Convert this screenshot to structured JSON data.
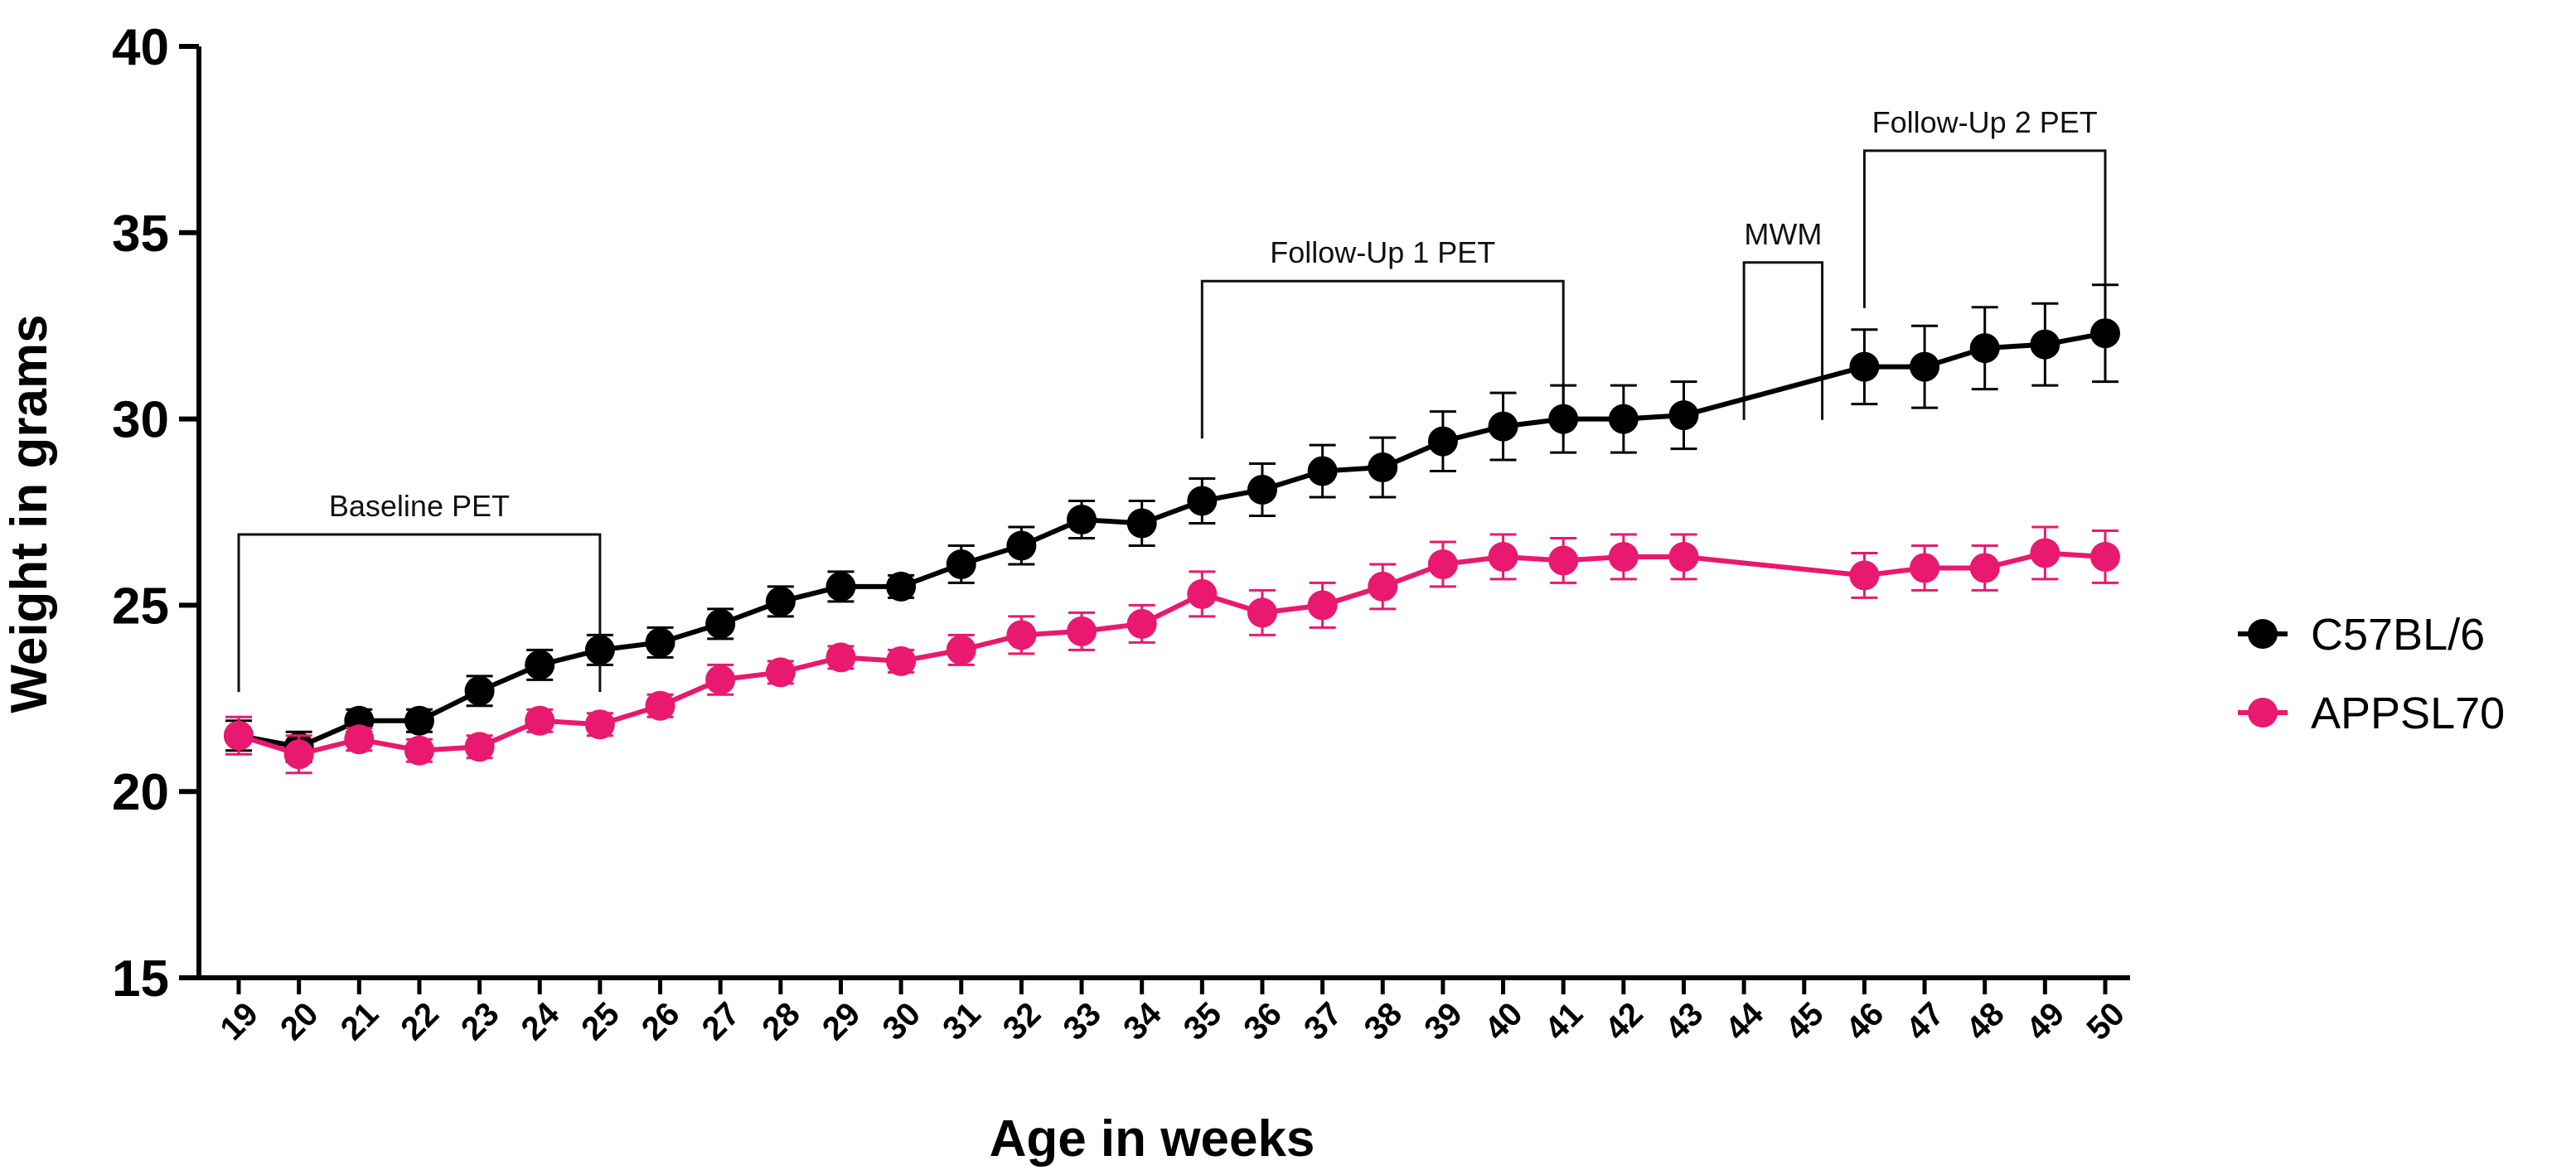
{
  "chart_data": {
    "type": "line",
    "title": "",
    "xlabel": "Age in weeks",
    "ylabel": "Weight in grams",
    "x": [
      19,
      20,
      21,
      22,
      23,
      24,
      25,
      26,
      27,
      28,
      29,
      30,
      31,
      32,
      33,
      34,
      35,
      36,
      37,
      38,
      39,
      40,
      41,
      42,
      43,
      44,
      45,
      46,
      47,
      48,
      49,
      50
    ],
    "x_ticks": [
      "19",
      "20",
      "21",
      "22",
      "23",
      "24",
      "25",
      "26",
      "27",
      "28",
      "29",
      "30",
      "31",
      "32",
      "33",
      "34",
      "35",
      "36",
      "37",
      "38",
      "39",
      "40",
      "41",
      "42",
      "43",
      "44",
      "45",
      "46",
      "47",
      "48",
      "49",
      "50"
    ],
    "ylim": [
      15,
      40
    ],
    "y_ticks": [
      "15",
      "20",
      "25",
      "30",
      "35",
      "40"
    ],
    "grid": false,
    "legend_position": "right",
    "series": [
      {
        "name": "C57BL/6",
        "color": "#000000",
        "x": [
          19,
          20,
          21,
          22,
          23,
          24,
          25,
          26,
          27,
          28,
          29,
          30,
          31,
          32,
          33,
          34,
          35,
          36,
          37,
          38,
          39,
          40,
          41,
          42,
          43,
          46,
          47,
          48,
          49,
          50
        ],
        "values": [
          21.5,
          21.2,
          21.9,
          21.9,
          22.7,
          23.4,
          23.8,
          24.0,
          24.5,
          25.1,
          25.5,
          25.5,
          26.1,
          26.6,
          27.3,
          27.2,
          27.8,
          28.1,
          28.6,
          28.7,
          29.4,
          29.8,
          30.0,
          30.0,
          30.1,
          31.4,
          31.4,
          31.9,
          32.0,
          32.3
        ],
        "errors": [
          0.4,
          0.4,
          0.3,
          0.3,
          0.4,
          0.4,
          0.4,
          0.4,
          0.4,
          0.4,
          0.4,
          0.3,
          0.5,
          0.5,
          0.5,
          0.6,
          0.6,
          0.7,
          0.7,
          0.8,
          0.8,
          0.9,
          0.9,
          0.9,
          0.9,
          1.0,
          1.1,
          1.1,
          1.1,
          1.3
        ]
      },
      {
        "name": "APPSL70",
        "color": "#e8196e",
        "x": [
          19,
          20,
          21,
          22,
          23,
          24,
          25,
          26,
          27,
          28,
          29,
          30,
          31,
          32,
          33,
          34,
          35,
          36,
          37,
          38,
          39,
          40,
          41,
          42,
          43,
          46,
          47,
          48,
          49,
          50
        ],
        "values": [
          21.5,
          21.0,
          21.4,
          21.1,
          21.2,
          21.9,
          21.8,
          22.3,
          23.0,
          23.2,
          23.6,
          23.5,
          23.8,
          24.2,
          24.3,
          24.5,
          25.3,
          24.8,
          25.0,
          25.5,
          26.1,
          26.3,
          26.2,
          26.3,
          26.3,
          25.8,
          26.0,
          26.0,
          26.4,
          26.3
        ],
        "errors": [
          0.5,
          0.5,
          0.3,
          0.3,
          0.3,
          0.3,
          0.3,
          0.3,
          0.4,
          0.3,
          0.3,
          0.3,
          0.4,
          0.5,
          0.5,
          0.5,
          0.6,
          0.6,
          0.6,
          0.6,
          0.6,
          0.6,
          0.6,
          0.6,
          0.6,
          0.6,
          0.6,
          0.6,
          0.7,
          0.7
        ]
      }
    ],
    "annotations": [
      {
        "label": "Baseline PET",
        "x_start": 19,
        "x_end": 25,
        "level": 26.9
      },
      {
        "label": "Follow-Up 1 PET",
        "x_start": 35,
        "x_end": 41,
        "level": 33.7
      },
      {
        "label": "MWM",
        "x_start": 44,
        "x_end": 45.3,
        "level": 34.2
      },
      {
        "label": "Follow-Up 2 PET",
        "x_start": 46,
        "x_end": 50,
        "level": 37.2
      }
    ]
  }
}
